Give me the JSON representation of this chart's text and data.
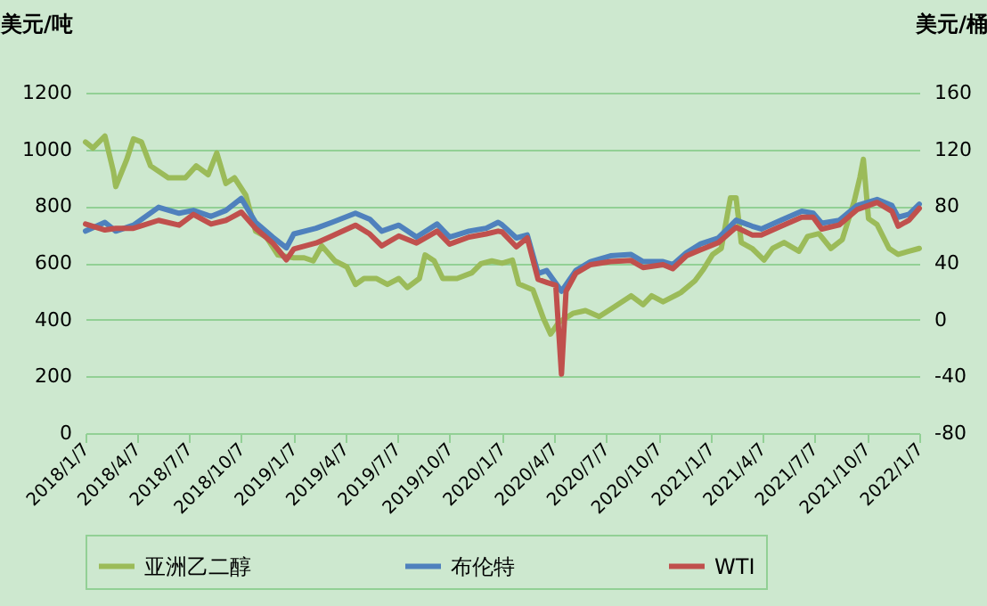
{
  "chart_data": {
    "type": "line",
    "ylabel": "美元/吨",
    "y2label": "美元/桶",
    "xlim": [
      "2018-01-07",
      "2022-01-07"
    ],
    "xticks": [
      {
        "value": "2018-01-07",
        "label": "2018/1/7"
      },
      {
        "value": "2018-04-07",
        "label": "2018/4/7"
      },
      {
        "value": "2018-07-07",
        "label": "2018/7/7"
      },
      {
        "value": "2018-10-07",
        "label": "2018/10/7"
      },
      {
        "value": "2019-01-07",
        "label": "2019/1/7"
      },
      {
        "value": "2019-04-07",
        "label": "2019/4/7"
      },
      {
        "value": "2019-07-07",
        "label": "2019/7/7"
      },
      {
        "value": "2019-10-07",
        "label": "2019/10/7"
      },
      {
        "value": "2020-01-07",
        "label": "2020/1/7"
      },
      {
        "value": "2020-04-07",
        "label": "2020/4/7"
      },
      {
        "value": "2020-07-07",
        "label": "2020/7/7"
      },
      {
        "value": "2020-10-07",
        "label": "2020/10/7"
      },
      {
        "value": "2021-01-07",
        "label": "2021/1/7"
      },
      {
        "value": "2021-04-07",
        "label": "2021/4/7"
      },
      {
        "value": "2021-07-07",
        "label": "2021/7/7"
      },
      {
        "value": "2021-10-07",
        "label": "2021/10/7"
      },
      {
        "value": "2022-01-07",
        "label": "2022/1/7"
      }
    ],
    "ylim": [
      0,
      1200
    ],
    "yticks": [
      0,
      200,
      400,
      600,
      800,
      1000,
      1200
    ],
    "y2lim": [
      -80,
      160
    ],
    "y2ticks": [
      -80,
      -40,
      0,
      40,
      80,
      120,
      160
    ],
    "grid": "y",
    "legend": "bottom",
    "series": [
      {
        "name": "亚洲乙二醇",
        "color": "#9bbb59",
        "x": [
          "2018-01-07",
          "2018-01-20",
          "2018-02-10",
          "2018-02-25",
          "2018-03-01",
          "2018-03-20",
          "2018-04-01",
          "2018-04-15",
          "2018-05-01",
          "2018-06-01",
          "2018-07-01",
          "2018-07-20",
          "2018-08-10",
          "2018-08-25",
          "2018-09-10",
          "2018-09-25",
          "2018-10-15",
          "2018-11-01",
          "2018-11-20",
          "2018-12-10",
          "2019-01-07",
          "2019-01-25",
          "2019-02-10",
          "2019-02-25",
          "2019-03-20",
          "2019-04-10",
          "2019-04-25",
          "2019-05-10",
          "2019-06-01",
          "2019-06-20",
          "2019-07-10",
          "2019-07-25",
          "2019-08-15",
          "2019-08-25",
          "2019-09-10",
          "2019-09-25",
          "2019-10-20",
          "2019-11-15",
          "2019-12-01",
          "2019-12-20",
          "2020-01-07",
          "2020-01-25",
          "2020-02-05",
          "2020-03-01",
          "2020-03-20",
          "2020-04-01",
          "2020-04-15",
          "2020-05-10",
          "2020-06-01",
          "2020-06-25",
          "2020-07-20",
          "2020-08-20",
          "2020-09-10",
          "2020-09-25",
          "2020-10-15",
          "2020-11-15",
          "2020-12-10",
          "2020-12-25",
          "2021-01-10",
          "2021-01-25",
          "2021-02-10",
          "2021-02-20",
          "2021-03-01",
          "2021-03-20",
          "2021-04-10",
          "2021-04-25",
          "2021-05-15",
          "2021-06-10",
          "2021-06-25",
          "2021-07-15",
          "2021-08-05",
          "2021-08-25",
          "2021-09-15",
          "2021-09-25",
          "2021-10-01",
          "2021-10-10",
          "2021-10-25",
          "2021-11-15",
          "2021-12-01",
          "2021-12-20",
          "2022-01-07"
        ],
        "values": [
          1026,
          1005,
          1047,
          921,
          869,
          963,
          1037,
          1026,
          942,
          900,
          900,
          942,
          911,
          988,
          880,
          900,
          838,
          712,
          691,
          628,
          618,
          618,
          607,
          660,
          607,
          586,
          524,
          545,
          545,
          524,
          545,
          513,
          545,
          628,
          607,
          545,
          545,
          565,
          597,
          607,
          599,
          610,
          526,
          505,
          401,
          349,
          390,
          422,
          432,
          411,
          443,
          484,
          453,
          484,
          463,
          495,
          537,
          578,
          630,
          651,
          829,
          829,
          672,
          651,
          610,
          651,
          672,
          641,
          693,
          703,
          651,
          682,
          818,
          902,
          965,
          756,
          735,
          651,
          630,
          641,
          651
        ]
      },
      {
        "name": "布伦特",
        "color": "#4f81bd",
        "axis": "y2",
        "x": [
          "2018-01-07",
          "2018-02-10",
          "2018-03-01",
          "2018-04-01",
          "2018-05-15",
          "2018-06-20",
          "2018-07-15",
          "2018-08-15",
          "2018-09-10",
          "2018-10-07",
          "2018-11-01",
          "2018-12-01",
          "2018-12-25",
          "2019-01-07",
          "2019-02-15",
          "2019-03-15",
          "2019-04-25",
          "2019-05-20",
          "2019-06-10",
          "2019-07-10",
          "2019-08-10",
          "2019-09-15",
          "2019-10-07",
          "2019-11-10",
          "2019-12-10",
          "2019-12-31",
          "2020-01-07",
          "2020-02-01",
          "2020-02-20",
          "2020-03-10",
          "2020-03-25",
          "2020-04-20",
          "2020-05-15",
          "2020-06-10",
          "2020-07-15",
          "2020-08-20",
          "2020-09-10",
          "2020-10-15",
          "2020-11-01",
          "2020-11-25",
          "2020-12-20",
          "2021-01-20",
          "2021-02-20",
          "2021-03-20",
          "2021-04-05",
          "2021-05-10",
          "2021-06-15",
          "2021-07-05",
          "2021-07-20",
          "2021-08-20",
          "2021-09-20",
          "2021-10-25",
          "2021-11-20",
          "2021-12-01",
          "2021-12-20",
          "2022-01-07"
        ],
        "values": [
          62.4,
          68.6,
          62.4,
          66.6,
          79.2,
          75,
          77,
          72.8,
          77,
          85.4,
          68.6,
          58.2,
          50.6,
          60.4,
          64.4,
          68.6,
          75,
          70.8,
          62.4,
          66.6,
          58.2,
          67.4,
          58.2,
          62.4,
          64.4,
          68.6,
          66.8,
          57.6,
          59.7,
          32.6,
          34.6,
          20,
          34.6,
          40.9,
          45,
          45.9,
          40.9,
          40.9,
          38.8,
          47.2,
          53.4,
          57.6,
          70.1,
          65.9,
          63.9,
          70.1,
          76.4,
          75.1,
          68,
          70.1,
          80.5,
          84.7,
          80.5,
          72.2,
          74.3,
          81.4
        ]
      },
      {
        "name": "WTI",
        "color": "#c0504d",
        "axis": "y2",
        "x": [
          "2018-01-07",
          "2018-02-10",
          "2018-03-01",
          "2018-04-01",
          "2018-05-15",
          "2018-06-20",
          "2018-07-15",
          "2018-08-15",
          "2018-09-10",
          "2018-10-07",
          "2018-11-01",
          "2018-12-01",
          "2018-12-25",
          "2019-01-07",
          "2019-02-15",
          "2019-03-15",
          "2019-04-25",
          "2019-05-20",
          "2019-06-10",
          "2019-07-10",
          "2019-08-10",
          "2019-09-15",
          "2019-10-07",
          "2019-11-10",
          "2019-12-10",
          "2019-12-31",
          "2020-01-07",
          "2020-02-01",
          "2020-02-20",
          "2020-03-10",
          "2020-03-25",
          "2020-04-10",
          "2020-04-20",
          "2020-04-28",
          "2020-05-15",
          "2020-06-10",
          "2020-07-15",
          "2020-08-20",
          "2020-09-10",
          "2020-10-15",
          "2020-11-01",
          "2020-11-25",
          "2020-12-20",
          "2021-01-20",
          "2021-02-20",
          "2021-03-20",
          "2021-04-05",
          "2021-05-10",
          "2021-06-15",
          "2021-07-05",
          "2021-07-20",
          "2021-08-20",
          "2021-09-20",
          "2021-10-25",
          "2021-11-20",
          "2021-12-01",
          "2021-12-20",
          "2022-01-07"
        ],
        "values": [
          67.4,
          63.2,
          64.4,
          64.4,
          70,
          66.6,
          74.2,
          67.4,
          70,
          75.8,
          64.4,
          54,
          42.2,
          49.8,
          54,
          59,
          66.6,
          60.4,
          52,
          59,
          54,
          62.4,
          53.2,
          58.2,
          60.4,
          62.4,
          61.8,
          51.3,
          57.6,
          28.4,
          26.3,
          24.2,
          -38.4,
          20,
          32.6,
          38.8,
          40.9,
          41.7,
          36.7,
          38.8,
          35.9,
          45,
          49.2,
          54.3,
          65.1,
          59.7,
          59.7,
          65.9,
          72.2,
          72.2,
          63.9,
          66.8,
          77.6,
          82.6,
          76.4,
          65.9,
          70.1,
          78.5
        ]
      }
    ]
  }
}
